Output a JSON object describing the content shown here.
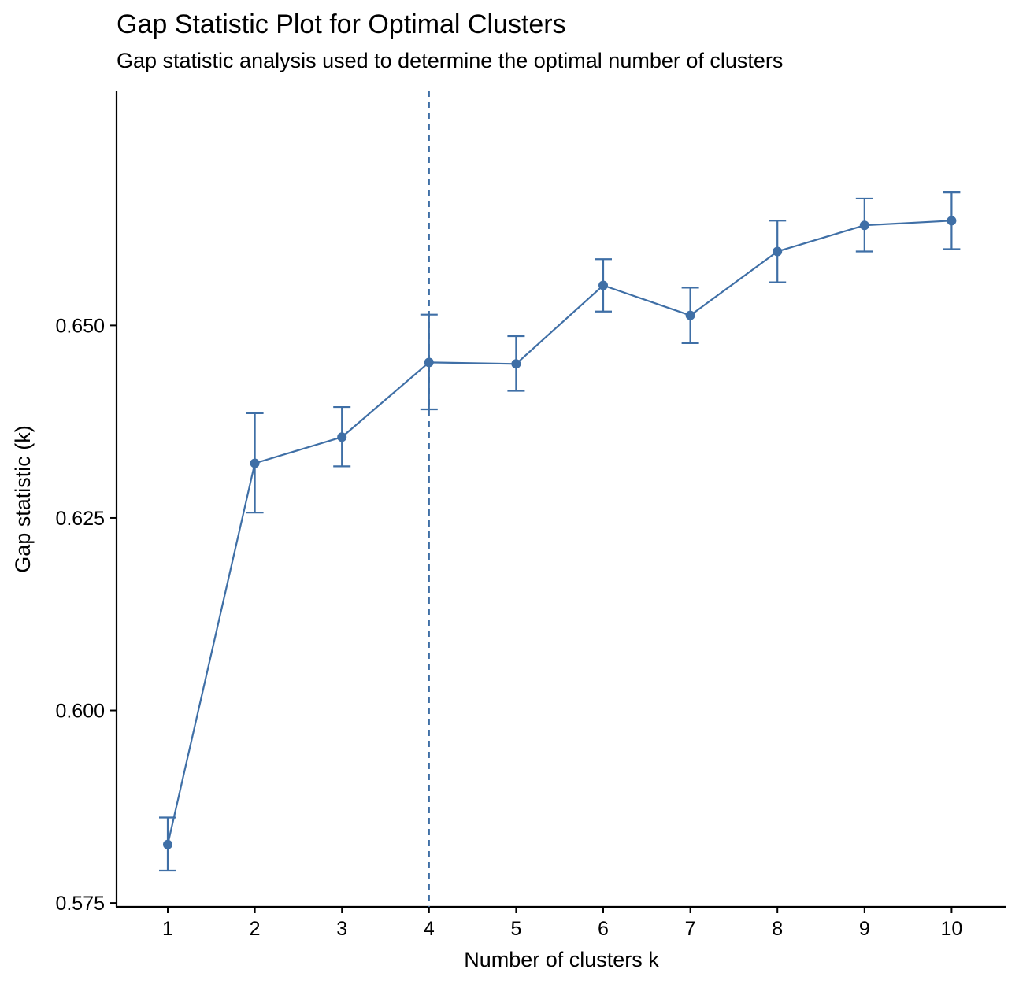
{
  "chart_data": {
    "type": "line",
    "title": "Gap Statistic Plot for Optimal Clusters",
    "subtitle": "Gap statistic analysis used to determine the optimal number of clusters",
    "xlabel": "Number of clusters k",
    "ylabel": "Gap statistic (k)",
    "categories": [
      "1",
      "2",
      "3",
      "4",
      "5",
      "6",
      "7",
      "8",
      "9",
      "10"
    ],
    "series": [
      {
        "values": [
          0.5826,
          0.6321,
          0.6355,
          0.6452,
          0.645,
          0.6552,
          0.6513,
          0.6596,
          0.663,
          0.6636
        ],
        "error_lower": [
          0.5792,
          0.6257,
          0.6317,
          0.6391,
          0.6415,
          0.6518,
          0.6477,
          0.6556,
          0.6596,
          0.6599
        ],
        "error_upper": [
          0.5861,
          0.6386,
          0.6394,
          0.6514,
          0.6486,
          0.6586,
          0.6549,
          0.6636,
          0.6665,
          0.6673
        ]
      }
    ],
    "optimal_k": 4,
    "ylim": [
      0.5745,
      0.6805
    ],
    "yticks": [
      "0.575",
      "0.600",
      "0.625",
      "0.650"
    ],
    "grid": false,
    "colors": {
      "series": "#3f6fa6",
      "axis": "#000000"
    }
  }
}
